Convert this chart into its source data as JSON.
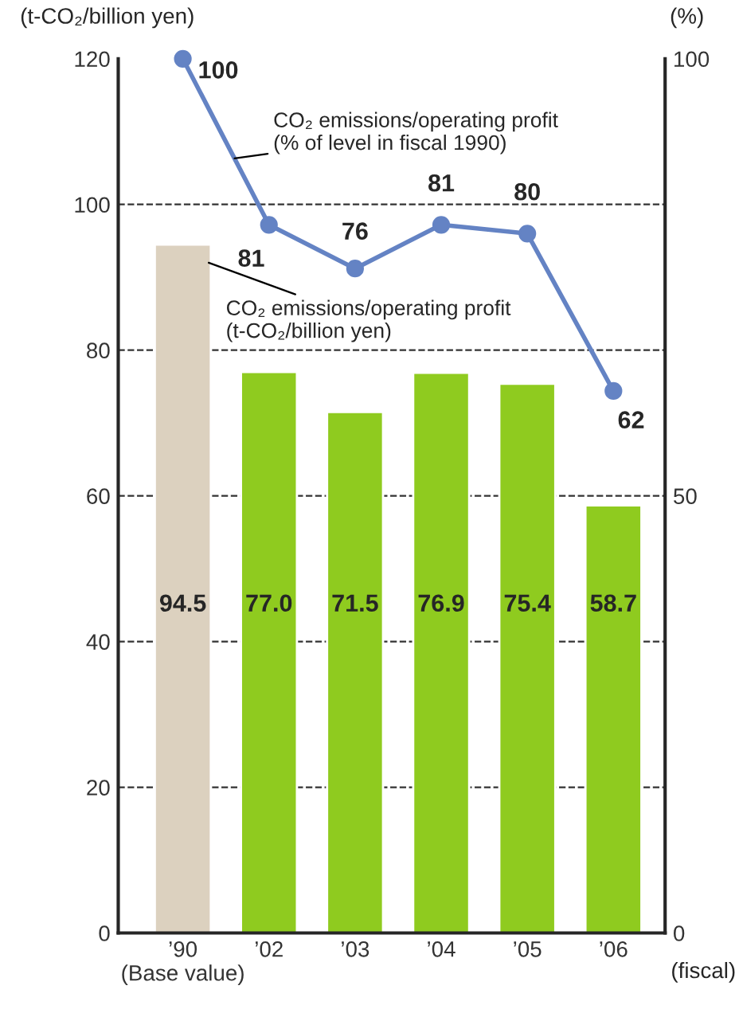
{
  "chart_data": {
    "type": "bar",
    "categories": [
      "’90\n(Base value)",
      "’02",
      "’03",
      "’04",
      "’05",
      "’06"
    ],
    "xlabel": "(fiscal)",
    "ylabel": "(t-CO₂/billion yen)",
    "y2label": "(%)",
    "series": [
      {
        "name": "CO₂ emissions/operating profit\n(t-CO₂/billion yen)",
        "colors": [
          "#dcd1bf",
          "#8fcb1f",
          "#8fcb1f",
          "#8fcb1f",
          "#8fcb1f",
          "#8fcb1f"
        ],
        "values": [
          94.5,
          77.0,
          71.5,
          76.9,
          75.4,
          58.7
        ],
        "value_labels": [
          "94.5",
          "77.0",
          "71.5",
          "76.9",
          "75.4",
          "58.7"
        ]
      },
      {
        "name": "CO₂ emissions/operating profit\n(% of level in fiscal 1990)",
        "type": "line",
        "axis": "y2",
        "color": "#6483c4",
        "marker": "circle",
        "values": [
          100,
          81,
          76,
          81,
          80,
          62
        ],
        "value_labels": [
          "100",
          "81",
          "76",
          "81",
          "80",
          "62"
        ]
      }
    ],
    "ylim": [
      0,
      120
    ],
    "yticks": [
      0,
      20,
      40,
      60,
      80,
      100,
      120
    ],
    "y2lim": [
      0,
      100
    ],
    "y2ticks": [
      0,
      50,
      100
    ],
    "grid": "y",
    "legend": false
  }
}
